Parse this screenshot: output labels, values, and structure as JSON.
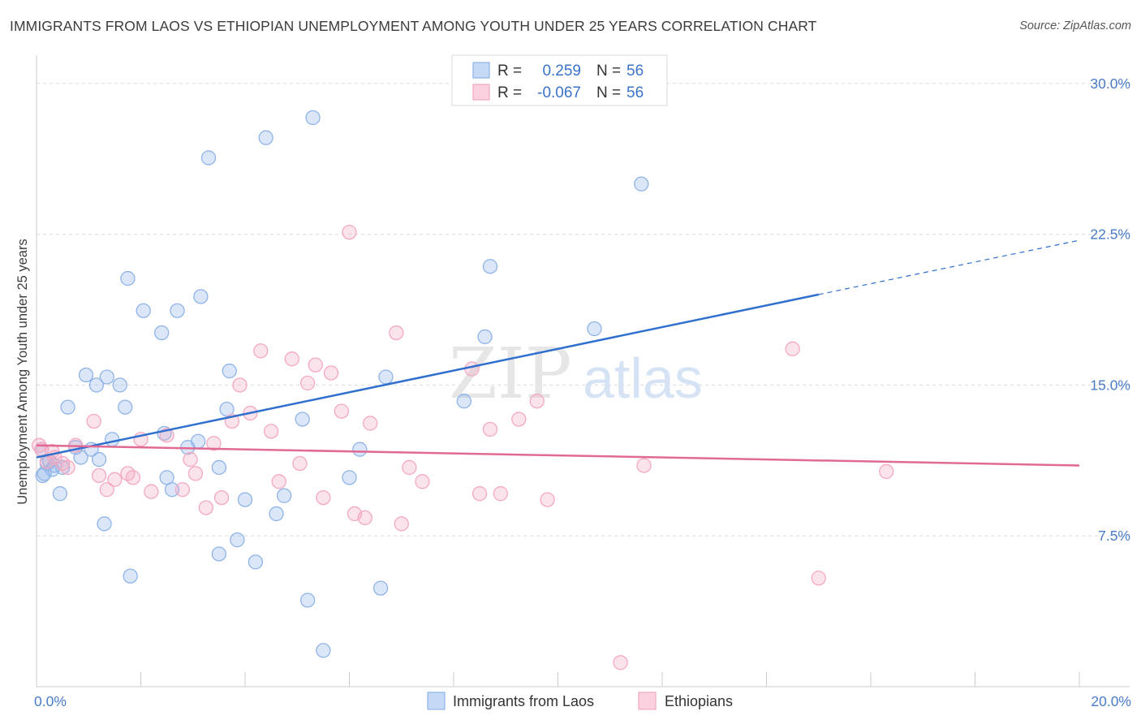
{
  "title": "IMMIGRANTS FROM LAOS VS ETHIOPIAN UNEMPLOYMENT AMONG YOUTH UNDER 25 YEARS CORRELATION CHART",
  "source": "Source: ZipAtlas.com",
  "watermark": {
    "zip": "ZIP",
    "atlas": "atlas"
  },
  "legend": {
    "rows": [
      {
        "r_label": "R =",
        "r_value": "0.259",
        "n_label": "N =",
        "n_value": "56"
      },
      {
        "r_label": "R =",
        "r_value": "-0.067",
        "n_label": "N =",
        "n_value": "56"
      }
    ]
  },
  "chart_data": {
    "type": "scatter",
    "title": "IMMIGRANTS FROM LAOS VS ETHIOPIAN UNEMPLOYMENT AMONG YOUTH UNDER 25 YEARS CORRELATION CHART",
    "xlabel": "",
    "ylabel": "Unemployment Among Youth under 25 years",
    "xlim": [
      0,
      20
    ],
    "ylim": [
      0,
      31
    ],
    "x_tick_labels": [
      "0.0%",
      "20.0%"
    ],
    "y_ticks": [
      7.5,
      15.0,
      22.5,
      30.0
    ],
    "y_tick_labels": [
      "7.5%",
      "15.0%",
      "22.5%",
      "30.0%"
    ],
    "grid": true,
    "legend_position": "top-center",
    "series": [
      {
        "name": "Immigrants from Laos",
        "color": "#8fb4e8",
        "line_color": "#2f6fce",
        "r": 0.259,
        "n": 56,
        "trend": {
          "x0": 0,
          "y0": 11.4,
          "x1": 15,
          "y1": 19.5,
          "x_dash_end": 20,
          "y_dash_end": 22.2
        },
        "points": [
          [
            0.1,
            11.8
          ],
          [
            0.15,
            10.6
          ],
          [
            0.2,
            11.1
          ],
          [
            0.3,
            10.8
          ],
          [
            0.35,
            11.0
          ],
          [
            0.45,
            9.6
          ],
          [
            0.5,
            10.9
          ],
          [
            0.6,
            13.9
          ],
          [
            0.75,
            11.9
          ],
          [
            0.85,
            11.4
          ],
          [
            0.95,
            15.5
          ],
          [
            1.05,
            11.8
          ],
          [
            1.15,
            15.0
          ],
          [
            1.2,
            11.3
          ],
          [
            1.3,
            8.1
          ],
          [
            1.35,
            15.4
          ],
          [
            1.45,
            12.3
          ],
          [
            1.6,
            15.0
          ],
          [
            1.7,
            13.9
          ],
          [
            1.75,
            20.3
          ],
          [
            1.8,
            5.5
          ],
          [
            2.05,
            18.7
          ],
          [
            2.4,
            17.6
          ],
          [
            2.45,
            12.6
          ],
          [
            2.5,
            10.4
          ],
          [
            2.6,
            9.8
          ],
          [
            2.7,
            18.7
          ],
          [
            2.9,
            11.9
          ],
          [
            3.1,
            12.2
          ],
          [
            3.15,
            19.4
          ],
          [
            3.3,
            26.3
          ],
          [
            3.5,
            6.6
          ],
          [
            3.5,
            10.9
          ],
          [
            3.65,
            13.8
          ],
          [
            3.7,
            15.7
          ],
          [
            3.85,
            7.3
          ],
          [
            4.0,
            9.3
          ],
          [
            4.2,
            6.2
          ],
          [
            4.4,
            27.3
          ],
          [
            4.6,
            8.6
          ],
          [
            4.75,
            9.5
          ],
          [
            5.1,
            13.3
          ],
          [
            5.2,
            4.3
          ],
          [
            5.3,
            28.3
          ],
          [
            5.5,
            1.8
          ],
          [
            6.0,
            10.4
          ],
          [
            6.2,
            11.8
          ],
          [
            6.6,
            4.9
          ],
          [
            6.7,
            15.4
          ],
          [
            8.2,
            14.2
          ],
          [
            8.6,
            17.4
          ],
          [
            8.7,
            20.9
          ],
          [
            10.7,
            17.8
          ],
          [
            11.6,
            25.0
          ],
          [
            0.12,
            10.5
          ],
          [
            0.25,
            11.2
          ]
        ]
      },
      {
        "name": "Ethiopians",
        "color": "#f4a8c2",
        "line_color": "#e06a93",
        "r": -0.067,
        "n": 56,
        "trend": {
          "x0": 0,
          "y0": 12.0,
          "x1": 20,
          "y1": 11.0
        },
        "points": [
          [
            0.1,
            11.8
          ],
          [
            0.2,
            11.2
          ],
          [
            0.35,
            11.4
          ],
          [
            0.5,
            11.1
          ],
          [
            0.75,
            12.0
          ],
          [
            1.1,
            13.2
          ],
          [
            1.2,
            10.5
          ],
          [
            1.35,
            9.8
          ],
          [
            1.5,
            10.3
          ],
          [
            1.75,
            10.6
          ],
          [
            1.85,
            10.4
          ],
          [
            2.0,
            12.3
          ],
          [
            2.2,
            9.7
          ],
          [
            2.5,
            12.5
          ],
          [
            2.8,
            9.8
          ],
          [
            2.95,
            11.3
          ],
          [
            3.05,
            10.6
          ],
          [
            3.25,
            8.9
          ],
          [
            3.4,
            12.1
          ],
          [
            3.55,
            9.4
          ],
          [
            3.75,
            13.2
          ],
          [
            3.9,
            15.0
          ],
          [
            4.1,
            13.6
          ],
          [
            4.3,
            16.7
          ],
          [
            4.5,
            12.7
          ],
          [
            4.65,
            10.2
          ],
          [
            4.9,
            16.3
          ],
          [
            5.05,
            11.1
          ],
          [
            5.2,
            15.1
          ],
          [
            5.35,
            16.0
          ],
          [
            5.5,
            9.4
          ],
          [
            5.65,
            15.6
          ],
          [
            5.85,
            13.7
          ],
          [
            6.0,
            22.6
          ],
          [
            6.1,
            8.6
          ],
          [
            6.3,
            8.4
          ],
          [
            6.4,
            13.1
          ],
          [
            6.9,
            17.6
          ],
          [
            7.0,
            8.1
          ],
          [
            7.15,
            10.9
          ],
          [
            7.4,
            10.2
          ],
          [
            8.35,
            15.8
          ],
          [
            8.5,
            9.6
          ],
          [
            8.7,
            12.8
          ],
          [
            8.9,
            9.6
          ],
          [
            9.25,
            13.3
          ],
          [
            9.6,
            14.2
          ],
          [
            9.8,
            9.3
          ],
          [
            11.2,
            1.2
          ],
          [
            11.65,
            11.0
          ],
          [
            14.5,
            16.8
          ],
          [
            15.0,
            5.4
          ],
          [
            16.3,
            10.7
          ],
          [
            0.05,
            12.0
          ],
          [
            0.3,
            11.7
          ],
          [
            0.6,
            10.9
          ]
        ]
      }
    ]
  }
}
